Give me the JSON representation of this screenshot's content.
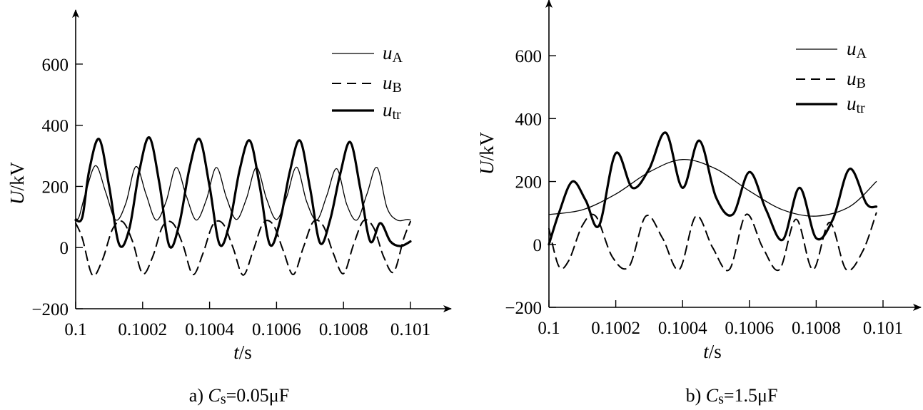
{
  "chart_data": [
    {
      "type": "line",
      "caption": "a) Cs=0.05μF",
      "caption_parts": {
        "prefix": "a) ",
        "var": "C",
        "sub": "s",
        "suffix": "=0.05μF"
      },
      "xlabel": {
        "var": "t",
        "unit": "/s"
      },
      "ylabel": {
        "var": "U",
        "unit": "/kV"
      },
      "xlim": [
        0.1,
        0.101
      ],
      "ylim": [
        -200,
        700
      ],
      "x_ticks": [
        0.1,
        0.1002,
        0.1004,
        0.1006,
        0.1008,
        0.101
      ],
      "x_tick_labels": [
        "0.1",
        "0.1002",
        "0.1004",
        "0.1006",
        "0.1008",
        "0.101"
      ],
      "y_ticks": [
        -200,
        0,
        200,
        400,
        600
      ],
      "y_tick_labels": [
        "−200",
        "0",
        "200",
        "400",
        "600"
      ],
      "grid": false,
      "legend_position": "top-right",
      "series": [
        {
          "name": "uA",
          "var": "u",
          "sub": "A",
          "style": "thin",
          "x": [
            0.1,
            0.10001,
            0.10003,
            0.10006,
            0.10009,
            0.10012,
            0.10015,
            0.10018,
            0.10021,
            0.10024,
            0.10027,
            0.1003,
            0.10033,
            0.10036,
            0.10039,
            0.10042,
            0.10045,
            0.10048,
            0.10051,
            0.10054,
            0.10057,
            0.1006,
            0.10063,
            0.10066,
            0.10069,
            0.10072,
            0.10075,
            0.10078,
            0.10081,
            0.10084,
            0.10087,
            0.1009,
            0.10093,
            0.10096,
            0.10099,
            0.101
          ],
          "y": [
            95,
            100,
            180,
            268,
            180,
            90,
            145,
            265,
            175,
            90,
            150,
            262,
            170,
            90,
            155,
            262,
            165,
            92,
            160,
            262,
            160,
            92,
            165,
            263,
            150,
            90,
            170,
            258,
            140,
            90,
            175,
            262,
            130,
            90,
            92,
            90
          ]
        },
        {
          "name": "uB",
          "var": "u",
          "sub": "B",
          "style": "dashed",
          "x": [
            0.1,
            0.10002,
            0.10005,
            0.10008,
            0.10011,
            0.10014,
            0.10017,
            0.1002,
            0.10023,
            0.10026,
            0.10029,
            0.10032,
            0.10035,
            0.10038,
            0.10041,
            0.10044,
            0.10047,
            0.1005,
            0.10053,
            0.10056,
            0.10059,
            0.10062,
            0.10065,
            0.10068,
            0.10071,
            0.10074,
            0.10077,
            0.1008,
            0.10083,
            0.10086,
            0.10089,
            0.10092,
            0.10095,
            0.10098,
            0.101
          ],
          "y": [
            80,
            30,
            -90,
            -40,
            60,
            85,
            20,
            -85,
            -30,
            70,
            80,
            10,
            -88,
            -20,
            75,
            78,
            0,
            -90,
            -10,
            80,
            75,
            -10,
            -88,
            0,
            85,
            70,
            -20,
            -85,
            10,
            88,
            65,
            -30,
            -80,
            30,
            85
          ]
        },
        {
          "name": "utr",
          "var": "u",
          "sub": "tr",
          "style": "thick",
          "x": [
            0.1,
            0.10002,
            0.10004,
            0.10007,
            0.1001,
            0.10013,
            0.10016,
            0.10019,
            0.10022,
            0.10025,
            0.10028,
            0.10031,
            0.10034,
            0.10037,
            0.1004,
            0.10043,
            0.10046,
            0.10049,
            0.10052,
            0.10055,
            0.10058,
            0.10061,
            0.10064,
            0.10067,
            0.1007,
            0.10073,
            0.10076,
            0.10079,
            0.10082,
            0.10085,
            0.10088,
            0.10091,
            0.10094,
            0.10097,
            0.101
          ],
          "y": [
            90,
            100,
            250,
            355,
            200,
            10,
            60,
            250,
            360,
            210,
            5,
            80,
            260,
            355,
            200,
            10,
            80,
            255,
            350,
            200,
            10,
            85,
            250,
            350,
            195,
            15,
            90,
            240,
            345,
            195,
            20,
            80,
            20,
            5,
            20
          ]
        }
      ]
    },
    {
      "type": "line",
      "caption": "b) Cs=1.5μF",
      "caption_parts": {
        "prefix": "b) ",
        "var": "C",
        "sub": "s",
        "suffix": "=1.5μF"
      },
      "xlabel": {
        "var": "t",
        "unit": "/s"
      },
      "ylabel": {
        "var": "U",
        "unit": "/kV"
      },
      "xlim": [
        0.1,
        0.101
      ],
      "ylim": [
        -200,
        700
      ],
      "x_ticks": [
        0.1,
        0.1002,
        0.1004,
        0.1006,
        0.1008,
        0.101
      ],
      "x_tick_labels": [
        "0.1",
        "0.1002",
        "0.1004",
        "0.1006",
        "0.1008",
        "0.101"
      ],
      "y_ticks": [
        -200,
        0,
        200,
        400,
        600
      ],
      "y_tick_labels": [
        "−200",
        "0",
        "200",
        "400",
        "600"
      ],
      "grid": false,
      "legend_position": "top-right",
      "series": [
        {
          "name": "uA",
          "var": "u",
          "sub": "A",
          "style": "thin",
          "x": [
            0.1,
            0.1001,
            0.1002,
            0.1003,
            0.1004,
            0.1005,
            0.1006,
            0.1007,
            0.1008,
            0.1009,
            0.10098
          ],
          "y": [
            95,
            110,
            160,
            230,
            270,
            240,
            170,
            110,
            90,
            120,
            200
          ]
        },
        {
          "name": "uB",
          "var": "u",
          "sub": "B",
          "style": "dashed",
          "x": [
            0.1,
            0.10003,
            0.10006,
            0.1001,
            0.10014,
            0.10019,
            0.10024,
            0.10029,
            0.10034,
            0.10039,
            0.10044,
            0.10049,
            0.10054,
            0.10059,
            0.10064,
            0.10069,
            0.10074,
            0.10079,
            0.10084,
            0.10089,
            0.10094,
            0.10098
          ],
          "y": [
            50,
            -70,
            -50,
            60,
            90,
            -40,
            -70,
            90,
            20,
            -80,
            90,
            -10,
            -80,
            95,
            -10,
            -80,
            80,
            -80,
            70,
            -80,
            -20,
            100
          ]
        },
        {
          "name": "utr",
          "var": "u",
          "sub": "tr",
          "style": "thick",
          "x": [
            0.1,
            0.10003,
            0.10007,
            0.10011,
            0.10015,
            0.1002,
            0.10025,
            0.1003,
            0.10035,
            0.1004,
            0.10045,
            0.1005,
            0.10055,
            0.1006,
            0.10065,
            0.1007,
            0.10075,
            0.1008,
            0.10085,
            0.1009,
            0.10095,
            0.10098
          ],
          "y": [
            0,
            100,
            200,
            140,
            60,
            290,
            180,
            240,
            355,
            180,
            330,
            150,
            95,
            230,
            110,
            15,
            180,
            20,
            80,
            240,
            130,
            120
          ]
        }
      ]
    }
  ]
}
